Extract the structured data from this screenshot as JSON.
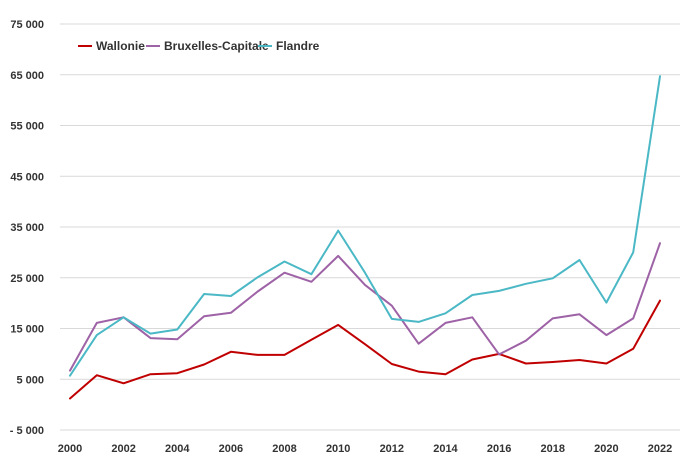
{
  "chart_data": {
    "type": "line",
    "title": "",
    "xlabel": "",
    "ylabel": "",
    "x": [
      2000,
      2001,
      2002,
      2003,
      2004,
      2005,
      2006,
      2007,
      2008,
      2009,
      2010,
      2011,
      2012,
      2013,
      2014,
      2015,
      2016,
      2017,
      2018,
      2019,
      2020,
      2021,
      2022
    ],
    "x_tick_labels": [
      "2000",
      "2002",
      "2004",
      "2006",
      "2008",
      "2010",
      "2012",
      "2014",
      "2016",
      "2018",
      "2020",
      "2022"
    ],
    "ylim": [
      -5000,
      75000
    ],
    "y_tick_labels": [
      "75 000",
      "65 000",
      "55 000",
      "45 000",
      "35 000",
      "25 000",
      "15 000",
      "5 000",
      "- 5 000"
    ],
    "y_tick_values": [
      75000,
      65000,
      55000,
      45000,
      35000,
      25000,
      15000,
      5000,
      -5000
    ],
    "grid": true,
    "legend_position": "top-left",
    "series": [
      {
        "name": "Wallonie",
        "color": "#c00000",
        "values": [
          1200,
          5800,
          4200,
          6000,
          6200,
          7900,
          10400,
          9800,
          9800,
          12800,
          15700,
          11900,
          8000,
          6500,
          6000,
          8900,
          10000,
          8100,
          8400,
          8800,
          8100,
          11000,
          20500
        ]
      },
      {
        "name": "Bruxelles-Capitale",
        "color": "#9e62a6",
        "values": [
          6700,
          16100,
          17200,
          13100,
          12900,
          17400,
          18100,
          22300,
          26000,
          24200,
          29300,
          23600,
          19500,
          12000,
          16100,
          17200,
          9900,
          12600,
          17000,
          17800,
          13700,
          17000,
          31800
        ]
      },
      {
        "name": "Flandre",
        "color": "#4bb8c6",
        "values": [
          5700,
          13700,
          17200,
          14000,
          14800,
          21800,
          21400,
          25100,
          28200,
          25700,
          34300,
          26000,
          16900,
          16300,
          18000,
          21600,
          22400,
          23800,
          24900,
          28500,
          20100,
          30000,
          64700
        ]
      }
    ]
  }
}
